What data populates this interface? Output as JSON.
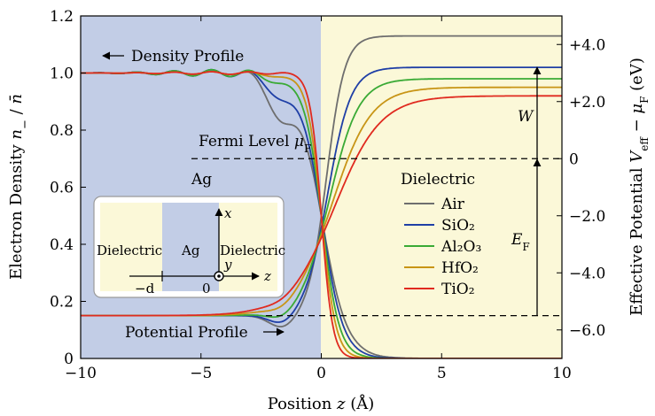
{
  "chart_data": {
    "type": "line",
    "xlabel": "Position z (Å)",
    "ylabel_left": "Electron Density n− / n̄",
    "ylabel_right": "Effective Potential Veff − μF (eV)",
    "xlim": [
      -10,
      10
    ],
    "ylim_left": [
      0,
      1.2
    ],
    "ylim_right": [
      -7.0,
      5.0
    ],
    "x_ticks": [
      -10,
      -5,
      0,
      5,
      10
    ],
    "x_tick_labels": [
      "−10",
      "−5",
      "0",
      "5",
      "10"
    ],
    "y_left_ticks": [
      0,
      0.2,
      0.4,
      0.6,
      0.8,
      1.0,
      1.2
    ],
    "y_left_tick_labels": [
      "0",
      "0.2",
      "0.4",
      "0.6",
      "0.8",
      "1.0",
      "1.2"
    ],
    "y_right_ticks": [
      -6,
      -4,
      -2,
      0,
      2,
      4
    ],
    "y_right_tick_labels": [
      "−6.0",
      "−4.0",
      "−2.0",
      "0",
      "+2.0",
      "+4.0"
    ],
    "regions": [
      {
        "name": "metal",
        "x": [
          -10,
          0
        ],
        "color": "#c2cde6"
      },
      {
        "name": "dielectric",
        "x": [
          0,
          10
        ],
        "color": "#fbf8d8"
      }
    ],
    "fermi_level_eV": 0,
    "bottom_potential_eV": -5.5,
    "legend_title": "Dielectric",
    "series": [
      {
        "name": "Air",
        "label": "Air",
        "color": "#6e6e6e",
        "density_outside": 0.0,
        "potential_outside_eV": 4.3
      },
      {
        "name": "SiO2",
        "label": "SiO₂",
        "color": "#1f3fa6",
        "density_outside": 0.0,
        "potential_outside_eV": 3.2
      },
      {
        "name": "Al2O3",
        "label": "Al₂O₃",
        "color": "#3aaa35",
        "density_outside": 0.0,
        "potential_outside_eV": 2.8
      },
      {
        "name": "HfO2",
        "label": "HfO₂",
        "color": "#c89516",
        "density_outside": 0.0,
        "potential_outside_eV": 2.5
      },
      {
        "name": "TiO2",
        "label": "TiO₂",
        "color": "#e02a1f",
        "density_outside": 0.0,
        "potential_outside_eV": 2.2
      }
    ],
    "annotations": {
      "density_profile": "Density Profile",
      "potential_profile": "Potential Profile",
      "fermi_level": "Fermi Level μF",
      "metal": "Ag",
      "work_function": "W",
      "fermi_energy": "EF"
    },
    "inset": {
      "left_label": "Dielectric",
      "middle_label": "Ag",
      "right_label": "Dielectric",
      "x_axis": "z",
      "y_axis": "y",
      "z_axis": "x",
      "minus_d": "−d",
      "zero": "0"
    }
  }
}
